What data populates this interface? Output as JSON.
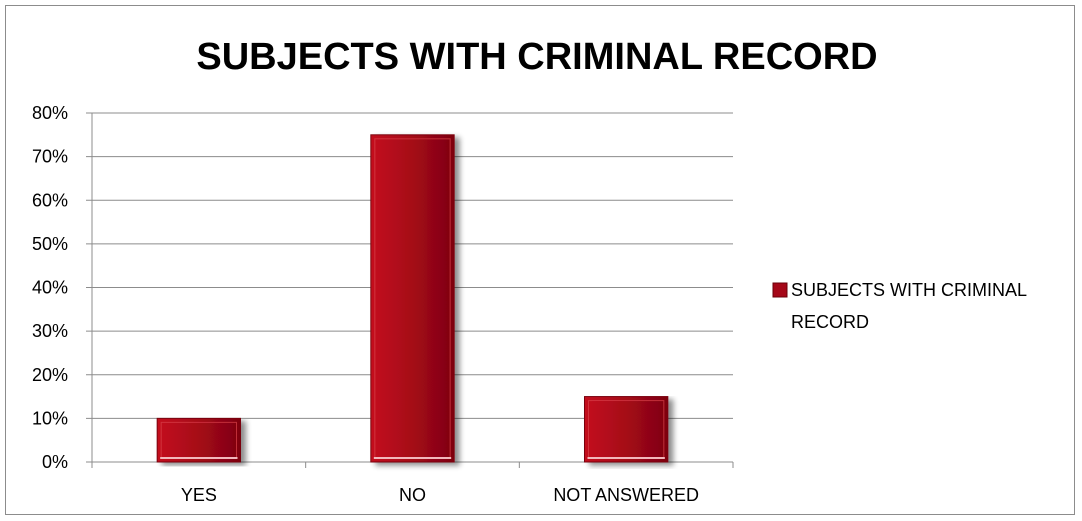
{
  "chart_data": {
    "type": "bar",
    "title": "SUBJECTS WITH CRIMINAL RECORD",
    "categories": [
      "YES",
      "NO",
      "NOT ANSWERED"
    ],
    "series": [
      {
        "name": "SUBJECTS WITH CRIMINAL RECORD",
        "values": [
          0.1,
          0.75,
          0.15
        ],
        "color": "#a50818"
      }
    ],
    "ylim": [
      0,
      0.8
    ],
    "yticks": [
      0,
      0.1,
      0.2,
      0.3,
      0.4,
      0.5,
      0.6,
      0.7,
      0.8
    ],
    "ytick_labels": [
      "0%",
      "10%",
      "20%",
      "30%",
      "40%",
      "50%",
      "60%",
      "70%",
      "80%"
    ],
    "legend_lines": [
      "SUBJECTS WITH CRIMINAL RECORD"
    ],
    "grid": true,
    "legend_position": "right"
  }
}
